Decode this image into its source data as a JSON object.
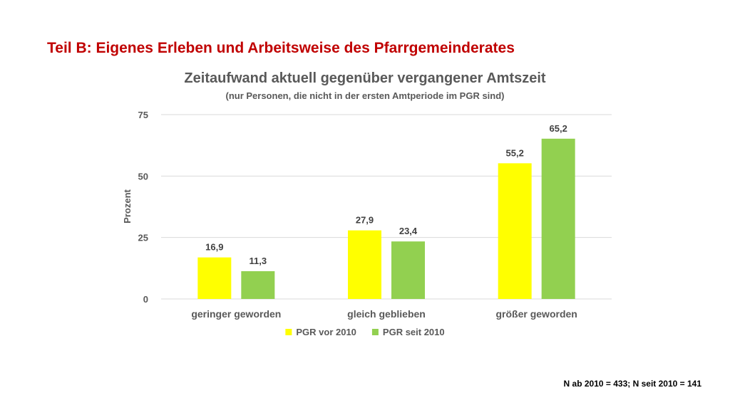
{
  "slide": {
    "header": "Teil B: Eigenes Erleben und Arbeitsweise des Pfarrgemeinderates",
    "footnote": "N ab 2010 = 433; N seit 2010 = 141"
  },
  "chart_data": {
    "type": "bar",
    "title": "Zeitaufwand aktuell gegenüber vergangener Amtszeit",
    "subtitle": "(nur Personen, die nicht in der ersten Amtperiode im PGR sind)",
    "ylabel": "Prozent",
    "xlabel": "",
    "ylim": [
      0,
      75
    ],
    "yticks": [
      0,
      25,
      50,
      75
    ],
    "grid": true,
    "legend_position": "bottom",
    "categories": [
      "geringer geworden",
      "gleich geblieben",
      "größer geworden"
    ],
    "series": [
      {
        "name": "PGR vor 2010",
        "color": "#ffff00",
        "values": [
          16.9,
          27.9,
          55.2
        ],
        "labels": [
          "16,9",
          "27,9",
          "55,2"
        ]
      },
      {
        "name": "PGR seit 2010",
        "color": "#92d050",
        "values": [
          11.3,
          23.4,
          65.2
        ],
        "labels": [
          "11,3",
          "23,4",
          "65,2"
        ]
      }
    ]
  }
}
